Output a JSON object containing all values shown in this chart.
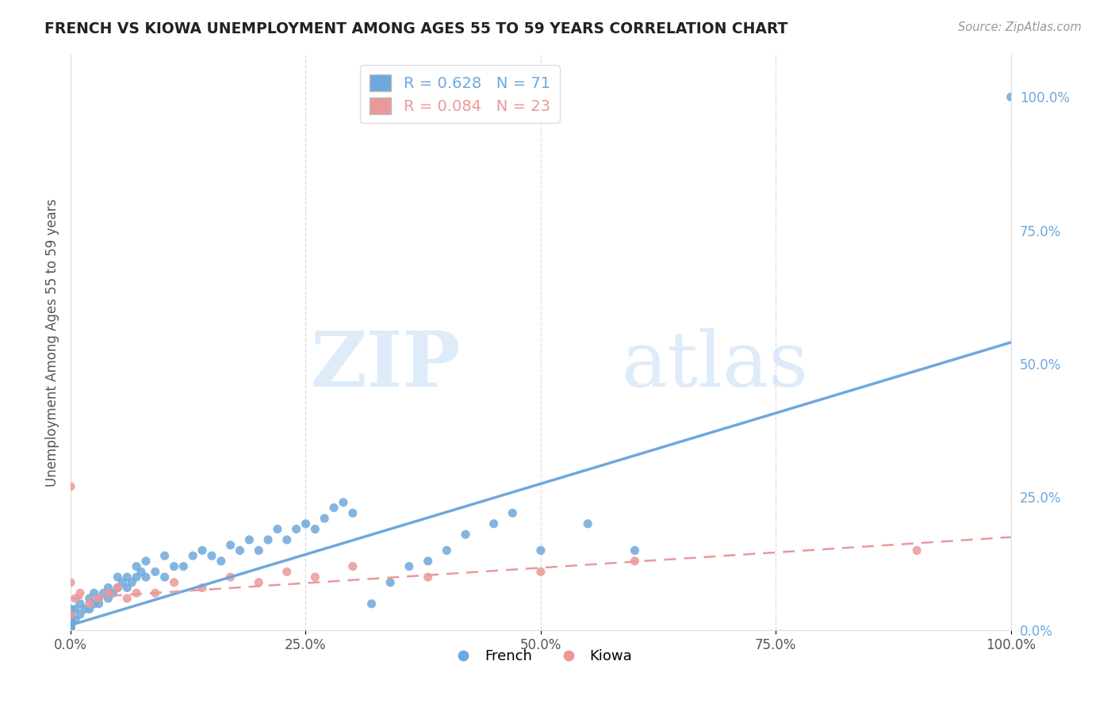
{
  "title": "FRENCH VS KIOWA UNEMPLOYMENT AMONG AGES 55 TO 59 YEARS CORRELATION CHART",
  "source": "Source: ZipAtlas.com",
  "ylabel": "Unemployment Among Ages 55 to 59 years",
  "xmin": 0.0,
  "xmax": 1.0,
  "ymin": 0.0,
  "ymax": 1.08,
  "xtick_labels": [
    "0.0%",
    "25.0%",
    "50.0%",
    "75.0%",
    "100.0%"
  ],
  "xtick_vals": [
    0.0,
    0.25,
    0.5,
    0.75,
    1.0
  ],
  "ytick_labels_right": [
    "0.0%",
    "25.0%",
    "50.0%",
    "75.0%",
    "100.0%"
  ],
  "ytick_vals": [
    0.0,
    0.25,
    0.5,
    0.75,
    1.0
  ],
  "french_color": "#6fa8dc",
  "kiowa_color": "#ea9999",
  "french_R": 0.628,
  "french_N": 71,
  "kiowa_R": 0.084,
  "kiowa_N": 23,
  "french_scatter_x": [
    0.0,
    0.0,
    0.0,
    0.0,
    0.0,
    0.0,
    0.0,
    0.0,
    0.0,
    0.0,
    0.005,
    0.005,
    0.01,
    0.01,
    0.015,
    0.02,
    0.02,
    0.025,
    0.025,
    0.03,
    0.03,
    0.035,
    0.04,
    0.04,
    0.045,
    0.05,
    0.05,
    0.055,
    0.06,
    0.06,
    0.065,
    0.07,
    0.07,
    0.075,
    0.08,
    0.08,
    0.09,
    0.1,
    0.1,
    0.11,
    0.12,
    0.13,
    0.14,
    0.15,
    0.16,
    0.17,
    0.18,
    0.19,
    0.2,
    0.21,
    0.22,
    0.23,
    0.24,
    0.25,
    0.26,
    0.27,
    0.28,
    0.29,
    0.3,
    0.32,
    0.34,
    0.36,
    0.38,
    0.4,
    0.42,
    0.45,
    0.47,
    0.5,
    0.55,
    0.6,
    1.0
  ],
  "french_scatter_y": [
    0.005,
    0.005,
    0.01,
    0.01,
    0.015,
    0.015,
    0.02,
    0.025,
    0.03,
    0.04,
    0.02,
    0.04,
    0.03,
    0.05,
    0.04,
    0.04,
    0.06,
    0.05,
    0.07,
    0.05,
    0.06,
    0.07,
    0.06,
    0.08,
    0.07,
    0.08,
    0.1,
    0.09,
    0.08,
    0.1,
    0.09,
    0.1,
    0.12,
    0.11,
    0.1,
    0.13,
    0.11,
    0.1,
    0.14,
    0.12,
    0.12,
    0.14,
    0.15,
    0.14,
    0.13,
    0.16,
    0.15,
    0.17,
    0.15,
    0.17,
    0.19,
    0.17,
    0.19,
    0.2,
    0.19,
    0.21,
    0.23,
    0.24,
    0.22,
    0.05,
    0.09,
    0.12,
    0.13,
    0.15,
    0.18,
    0.2,
    0.22,
    0.15,
    0.2,
    0.15,
    1.0
  ],
  "kiowa_scatter_x": [
    0.0,
    0.0,
    0.0,
    0.005,
    0.01,
    0.02,
    0.03,
    0.04,
    0.05,
    0.06,
    0.07,
    0.09,
    0.11,
    0.14,
    0.17,
    0.2,
    0.23,
    0.26,
    0.3,
    0.38,
    0.5,
    0.6,
    0.9
  ],
  "kiowa_scatter_y": [
    0.27,
    0.09,
    0.03,
    0.06,
    0.07,
    0.05,
    0.06,
    0.07,
    0.08,
    0.06,
    0.07,
    0.07,
    0.09,
    0.08,
    0.1,
    0.09,
    0.11,
    0.1,
    0.12,
    0.1,
    0.11,
    0.13,
    0.15
  ],
  "background_color": "#ffffff",
  "grid_color": "#dddddd",
  "french_line_x0": 0.0,
  "french_line_x1": 1.0,
  "french_line_y0": 0.01,
  "french_line_y1": 0.54,
  "kiowa_line_x0": 0.0,
  "kiowa_line_x1": 1.0,
  "kiowa_line_y0": 0.06,
  "kiowa_line_y1": 0.175,
  "watermark_zip_color": "#c8dff5",
  "watermark_atlas_color": "#c8dff5"
}
